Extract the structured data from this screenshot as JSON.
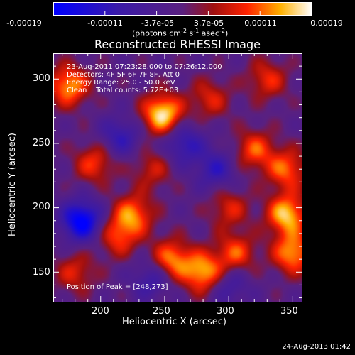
{
  "colorbar": {
    "ticks": [
      "-0.00019",
      "-0.00011",
      "-3.7e-05",
      "3.7e-05",
      "0.00011",
      "0.00019"
    ],
    "unit_text": "(photons cm",
    "unit_exp1": "-2",
    "unit_mid": " s",
    "unit_exp2": "-1",
    "unit_tail": " asec",
    "unit_exp3": "-2",
    "unit_close": ")"
  },
  "chart_data": {
    "type": "heatmap",
    "title": "Reconstructed RHESSI Image",
    "xlabel": "Heliocentric X (arcsec)",
    "ylabel": "Heliocentric Y (arcsec)",
    "xlim": [
      163,
      357
    ],
    "ylim": [
      127,
      320
    ],
    "xticks": [
      "200",
      "250",
      "300",
      "350"
    ],
    "yticks": [
      "150",
      "200",
      "250",
      "300"
    ],
    "color_range": [
      -0.00019,
      0.00019
    ],
    "sources": [
      {
        "x": 248,
        "y": 273,
        "amp": 1.0
      },
      {
        "x": 175,
        "y": 295,
        "amp": 0.8
      },
      {
        "x": 195,
        "y": 235,
        "amp": 0.55
      },
      {
        "x": 225,
        "y": 195,
        "amp": 0.7
      },
      {
        "x": 213,
        "y": 178,
        "amp": 0.55
      },
      {
        "x": 255,
        "y": 160,
        "amp": 0.75
      },
      {
        "x": 280,
        "y": 150,
        "amp": 0.85
      },
      {
        "x": 305,
        "y": 165,
        "amp": 0.6
      },
      {
        "x": 345,
        "y": 195,
        "amp": 0.9
      },
      {
        "x": 350,
        "y": 165,
        "amp": 0.8
      },
      {
        "x": 320,
        "y": 245,
        "amp": 0.6
      },
      {
        "x": 345,
        "y": 230,
        "amp": 0.65
      },
      {
        "x": 330,
        "y": 300,
        "amp": 0.5
      },
      {
        "x": 285,
        "y": 285,
        "amp": 0.45
      },
      {
        "x": 300,
        "y": 200,
        "amp": 0.45
      },
      {
        "x": 180,
        "y": 150,
        "amp": 0.45
      },
      {
        "x": 240,
        "y": 230,
        "amp": 0.4
      },
      {
        "x": 185,
        "y": 190,
        "amp": -1.0
      },
      {
        "x": 265,
        "y": 250,
        "amp": -0.55
      },
      {
        "x": 290,
        "y": 230,
        "amp": -0.5
      },
      {
        "x": 215,
        "y": 255,
        "amp": -0.5
      },
      {
        "x": 300,
        "y": 140,
        "amp": -0.4
      },
      {
        "x": 240,
        "y": 145,
        "amp": -0.45
      }
    ],
    "annotations": {
      "time": "23-Aug-2011 07:23:28.000 to 07:26:12.000",
      "detectors": "Detectors: 4F 5F 6F 7F 8F, Att 0",
      "energy": "Energy Range: 25.0 - 50.0 keV",
      "clean": "Clean    Total counts: 5.72E+03",
      "peak": "Position of Peak = [248,273]"
    },
    "peak": [
      248,
      273
    ]
  },
  "footer": {
    "date": "24-Aug-2013 01:42"
  }
}
